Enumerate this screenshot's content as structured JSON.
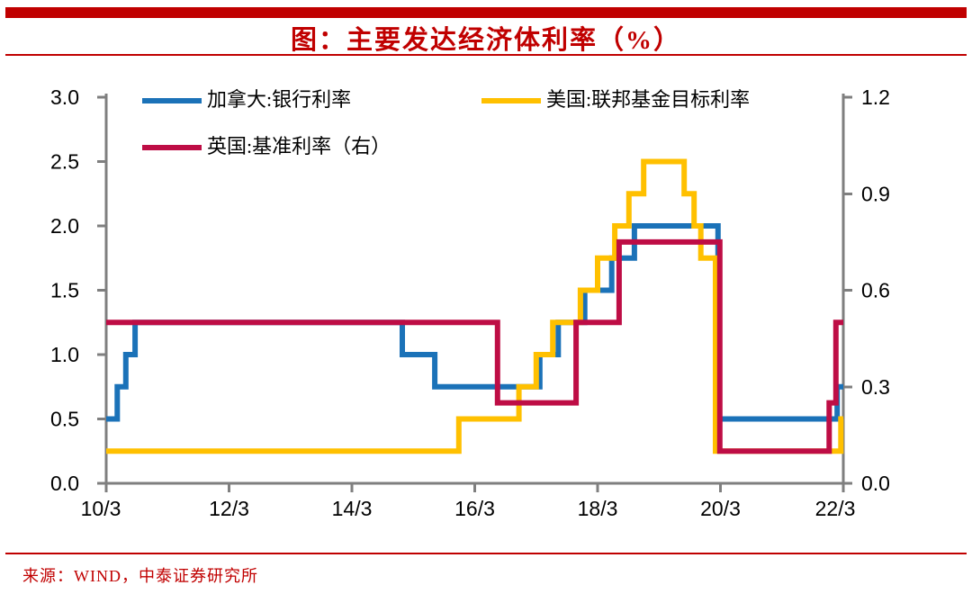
{
  "header": {
    "title": "图：主要发达经济体利率（%）",
    "accent_color": "#C00000"
  },
  "footer": {
    "source": "来源：WIND，中泰证券研究所",
    "color": "#C00000"
  },
  "chart_data": {
    "type": "line",
    "subtype": "step",
    "title": "图：主要发达经济体利率（%）",
    "grid": false,
    "legend_position": "top-inside",
    "axis_color": "#7F7F7F",
    "tick_label_color": "#000000",
    "x_axis": {
      "domain": [
        2010.25,
        2022.25
      ],
      "tick_values": [
        2010.25,
        2012.25,
        2014.25,
        2016.25,
        2018.25,
        2020.25,
        2022.25
      ],
      "tick_labels": [
        "10/3",
        "12/3",
        "14/3",
        "16/3",
        "18/3",
        "20/3",
        "22/3"
      ]
    },
    "left_axis": {
      "range": [
        0,
        3.0
      ],
      "tick_values": [
        3.0,
        2.5,
        2.0,
        1.5,
        1.0,
        0.5,
        0.0
      ],
      "tick_labels": [
        "3.0",
        "2.5",
        "2.0",
        "1.5",
        "1.0",
        "0.5",
        "0.0"
      ]
    },
    "right_axis": {
      "range": [
        0,
        1.2
      ],
      "tick_values": [
        1.2,
        0.9,
        0.6,
        0.3,
        0.0
      ],
      "tick_labels": [
        "1.2",
        "0.9",
        "0.6",
        "0.3",
        "0.0"
      ]
    },
    "series": [
      {
        "id": "canada_bank_rate",
        "name": "加拿大:银行利率",
        "axis": "left",
        "color": "#1B72B8",
        "points": [
          [
            2010.25,
            0.5
          ],
          [
            2010.43,
            0.75
          ],
          [
            2010.57,
            1.0
          ],
          [
            2010.72,
            1.25
          ],
          [
            2015.07,
            1.0
          ],
          [
            2015.6,
            0.75
          ],
          [
            2017.31,
            1.0
          ],
          [
            2017.61,
            1.25
          ],
          [
            2018.04,
            1.5
          ],
          [
            2018.48,
            1.75
          ],
          [
            2018.85,
            2.0
          ],
          [
            2020.21,
            0.5
          ],
          [
            2022.15,
            0.75
          ]
        ]
      },
      {
        "id": "us_fed_funds_target_rate",
        "name": "美国:联邦基金目标利率",
        "axis": "left",
        "color": "#FFC000",
        "points": [
          [
            2010.25,
            0.25
          ],
          [
            2015.99,
            0.5
          ],
          [
            2016.97,
            0.75
          ],
          [
            2017.25,
            1.0
          ],
          [
            2017.52,
            1.25
          ],
          [
            2017.97,
            1.5
          ],
          [
            2018.25,
            1.75
          ],
          [
            2018.53,
            2.0
          ],
          [
            2018.76,
            2.25
          ],
          [
            2019.0,
            2.5
          ],
          [
            2019.66,
            2.25
          ],
          [
            2019.82,
            2.0
          ],
          [
            2019.93,
            1.75
          ],
          [
            2020.17,
            0.25
          ],
          [
            2022.21,
            0.5
          ]
        ]
      },
      {
        "id": "uk_base_rate_right_axis",
        "name": "英国:基准利率（右）",
        "axis": "right",
        "color": "#BE0D45",
        "points": [
          [
            2010.25,
            0.5
          ],
          [
            2016.62,
            0.25
          ],
          [
            2017.9,
            0.5
          ],
          [
            2018.6,
            0.75
          ],
          [
            2020.24,
            0.1
          ],
          [
            2022.02,
            0.25
          ],
          [
            2022.13,
            0.5
          ]
        ]
      }
    ]
  }
}
